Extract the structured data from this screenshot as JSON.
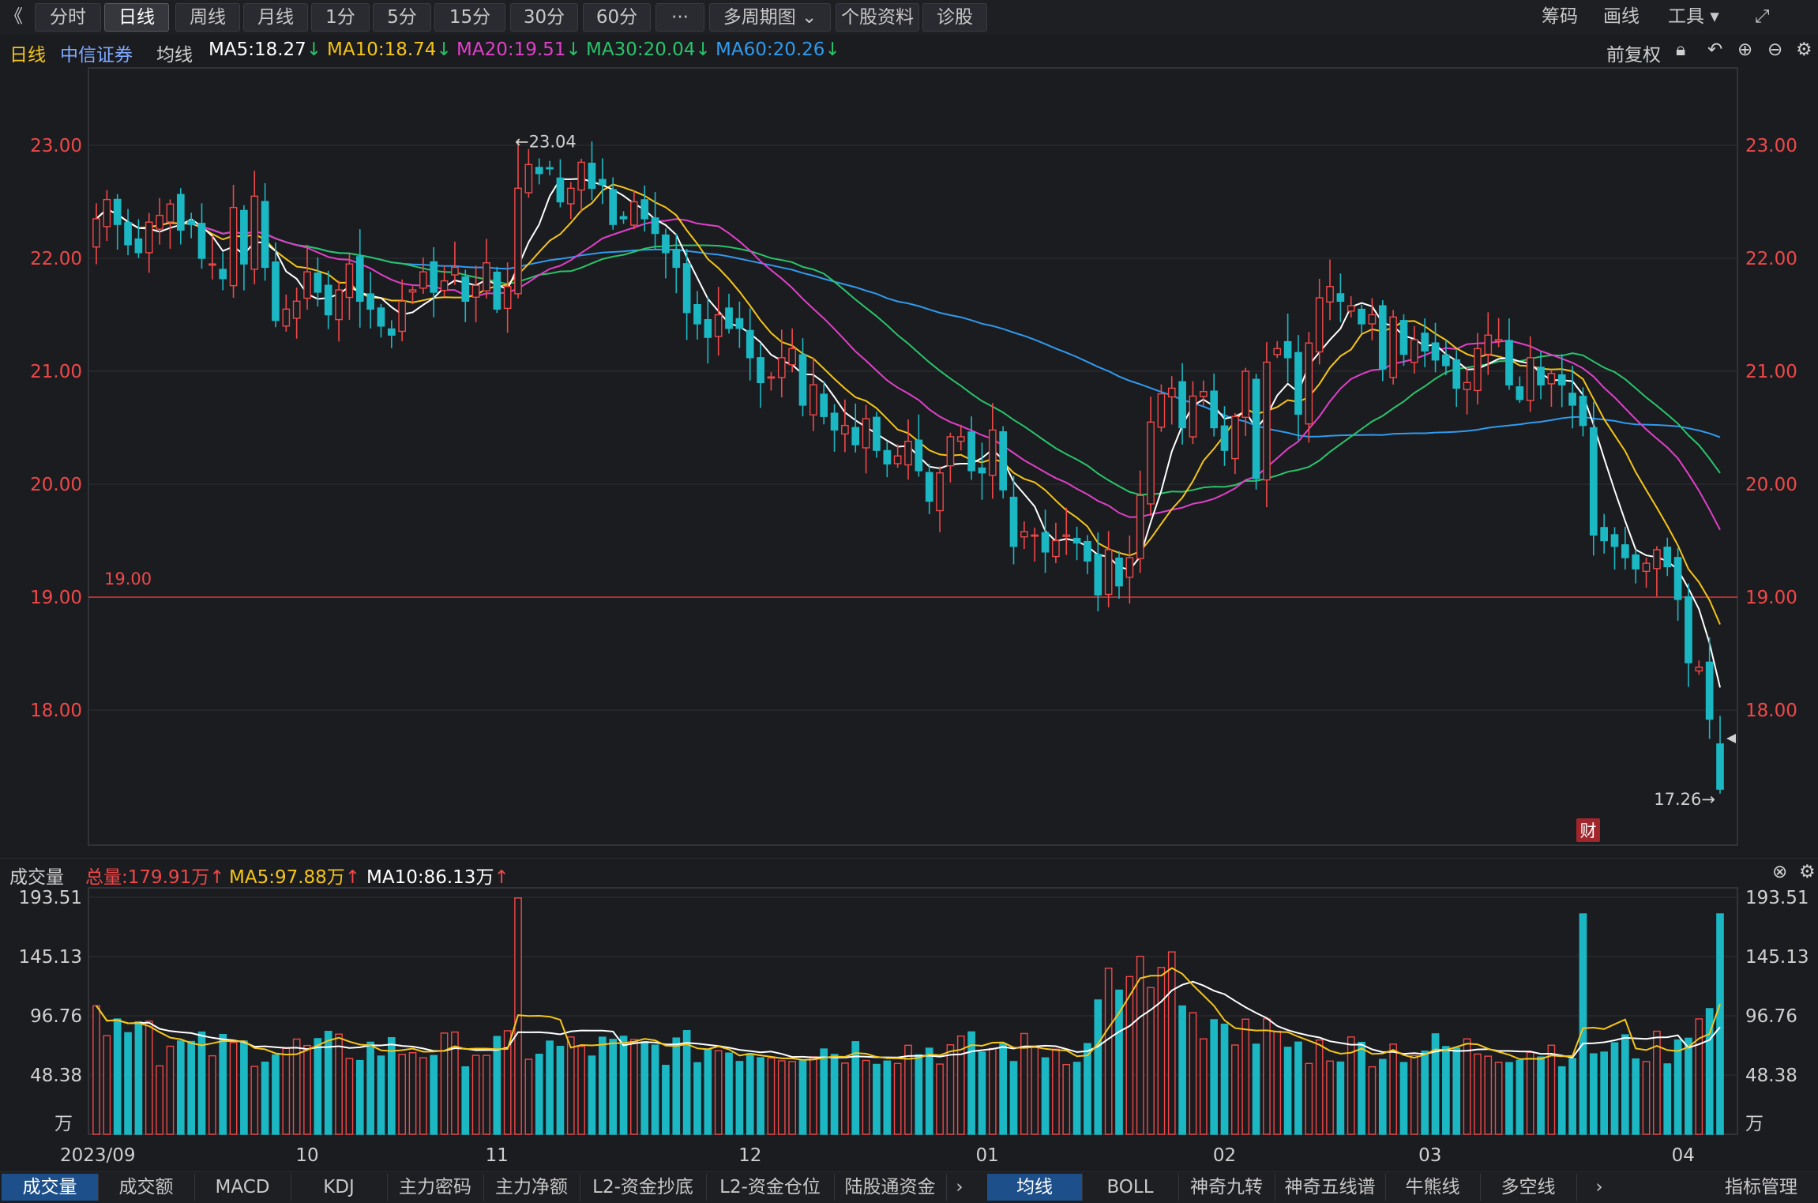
{
  "toolbar": {
    "back_icon": "《",
    "buttons": [
      "分时",
      "日线",
      "周线",
      "月线",
      "1分",
      "5分",
      "15分",
      "30分",
      "60分",
      "···",
      "多周期图 ⌄",
      "个股资料",
      "诊股"
    ],
    "active_index": 1,
    "right": [
      "筹码",
      "画线",
      "工具 ▾"
    ],
    "fullscreen_icon": "expand-icon"
  },
  "info": {
    "period": "日线",
    "stock": "中信证券",
    "ma_label": "均线",
    "ma5": "MA5:18.27",
    "ma10": "MA10:18.74",
    "ma20": "MA20:19.51",
    "ma30": "MA30:20.04",
    "ma60": "MA60:20.26",
    "adjust": "前复权",
    "colors": {
      "ma5": "#ffffff",
      "ma10": "#f5c518",
      "ma20": "#e040c8",
      "ma30": "#29c46a",
      "ma60": "#2f9bef",
      "up": "#f04848",
      "down": "#1bb8c4"
    }
  },
  "price_axis": {
    "labels": [
      "23.00",
      "22.00",
      "21.00",
      "20.00",
      "19.00",
      "18.00"
    ],
    "values": [
      23,
      22,
      21,
      20,
      19,
      18
    ]
  },
  "annotations": {
    "high": "←23.04",
    "low": "17.26→",
    "line_label": "19.00",
    "line_value": 19.0,
    "fin_badge": "财"
  },
  "volume": {
    "title": "成交量",
    "total": "总量:179.91万",
    "ma5": "MA5:97.88万",
    "ma10": "MA10:86.13万",
    "axis_labels": [
      "193.51",
      "145.13",
      "96.76",
      "48.38",
      "万"
    ],
    "axis_values": [
      193.51,
      145.13,
      96.76,
      48.38
    ]
  },
  "xaxis": {
    "labels": [
      "2023/09",
      "10",
      "11",
      "12",
      "01",
      "02",
      "03",
      "04"
    ],
    "indices": [
      0,
      13,
      25,
      41,
      56,
      71,
      84,
      100
    ]
  },
  "bottom_tabs": {
    "left": [
      "成交量",
      "成交额",
      "MACD",
      "KDJ",
      "主力密码",
      "主力净额",
      "L2-资金抄底",
      "L2-资金仓位",
      "陆股通资金"
    ],
    "right": [
      "均线",
      "BOLL",
      "神奇九转",
      "神奇五线谱",
      "牛熊线",
      "多空线"
    ],
    "far_right": "指标管理",
    "left_active": 0,
    "right_active": 0
  },
  "chart_data": {
    "type": "candlestick",
    "closes": [
      22.35,
      22.52,
      22.3,
      22.12,
      22.05,
      22.32,
      22.38,
      22.48,
      22.25,
      22.3,
      22.0,
      21.95,
      21.82,
      22.45,
      21.95,
      22.55,
      21.92,
      21.45,
      21.55,
      21.62,
      21.88,
      21.7,
      21.5,
      21.72,
      21.95,
      21.62,
      21.55,
      21.4,
      21.32,
      21.62,
      21.72,
      21.88,
      21.7,
      21.8,
      21.92,
      21.62,
      21.76,
      21.96,
      21.55,
      21.75,
      22.62,
      22.83,
      22.75,
      22.8,
      22.5,
      22.62,
      22.85,
      22.62,
      22.65,
      22.3,
      22.35,
      22.5,
      22.35,
      22.22,
      22.05,
      21.92,
      21.52,
      21.42,
      21.3,
      21.5,
      21.38,
      21.38,
      21.12,
      20.9,
      20.95,
      21.12,
      21.2,
      20.7,
      20.88,
      20.6,
      20.48,
      20.52,
      20.35,
      20.58,
      20.3,
      20.18,
      20.25,
      20.38,
      20.12,
      19.85,
      20.1,
      20.42,
      20.42,
      20.12,
      20.1,
      20.48,
      19.95,
      19.45,
      19.58,
      19.55,
      19.4,
      19.5,
      19.55,
      19.48,
      19.32,
      19.02,
      19.42,
      19.1,
      19.35,
      19.9,
      20.55,
      20.8,
      20.85,
      20.5,
      20.78,
      20.82,
      20.5,
      20.3,
      20.6,
      21.0,
      20.05,
      21.08,
      21.2,
      21.12,
      20.62,
      21.25,
      21.65,
      21.75,
      21.62,
      21.58,
      21.42,
      21.5,
      21.02,
      21.48,
      21.15,
      21.28,
      21.18,
      21.1,
      21.05,
      20.85,
      20.9,
      21.2,
      21.32,
      21.28,
      20.88,
      20.75,
      21.12,
      20.88,
      20.98,
      20.88,
      20.7,
      20.52,
      19.55,
      19.5,
      19.45,
      19.35,
      19.25,
      19.3,
      19.42,
      19.27,
      18.98,
      18.42,
      18.38,
      17.92,
      17.3
    ]
  }
}
